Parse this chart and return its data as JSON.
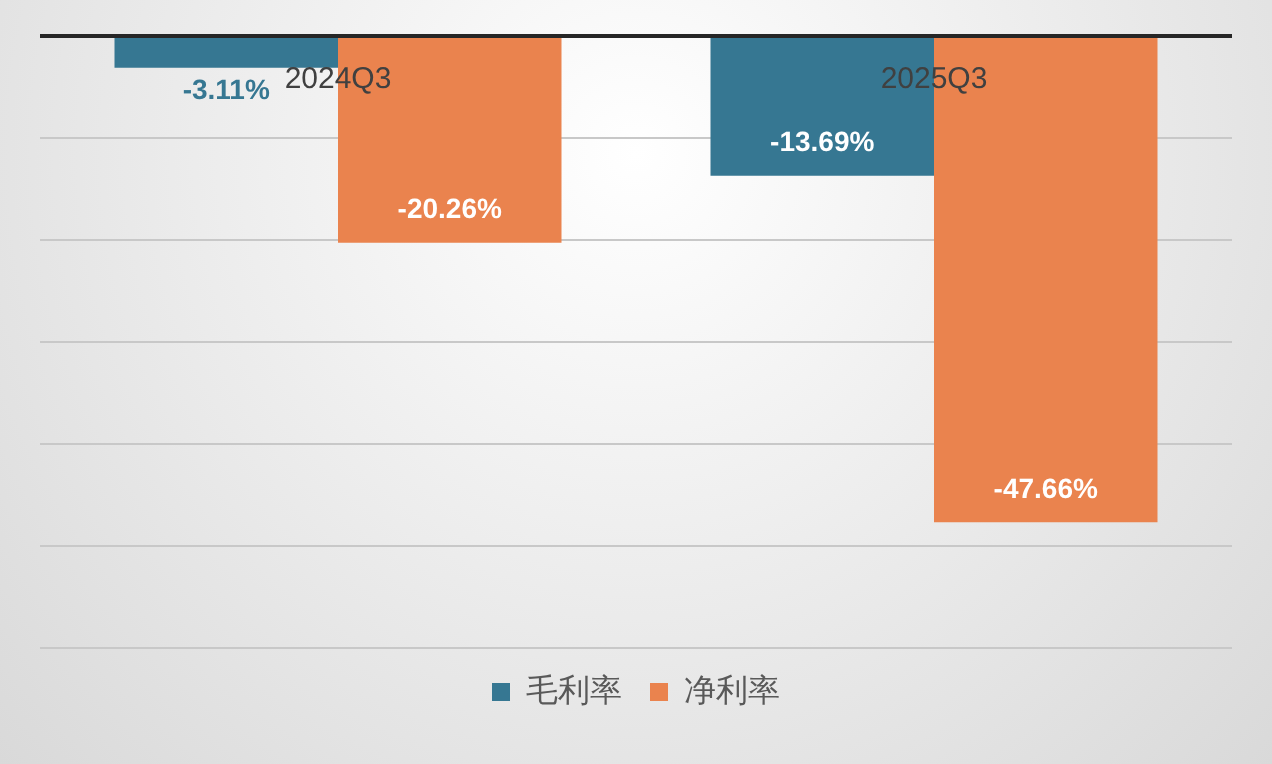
{
  "chart_data": {
    "type": "bar",
    "categories": [
      "2024Q3",
      "2025Q3"
    ],
    "series": [
      {
        "name": "毛利率",
        "color": "#367792",
        "values": [
          -3.11,
          -13.69
        ],
        "value_labels": [
          "-3.11%",
          "-13.69%"
        ]
      },
      {
        "name": "净利率",
        "color": "#ea834e",
        "values": [
          -20.26,
          -47.66
        ],
        "value_labels": [
          "-20.26%",
          "-47.66%"
        ]
      }
    ],
    "ylim": [
      -60,
      0
    ],
    "grid": "y",
    "legend": "bottom",
    "tick_labels": "x"
  }
}
